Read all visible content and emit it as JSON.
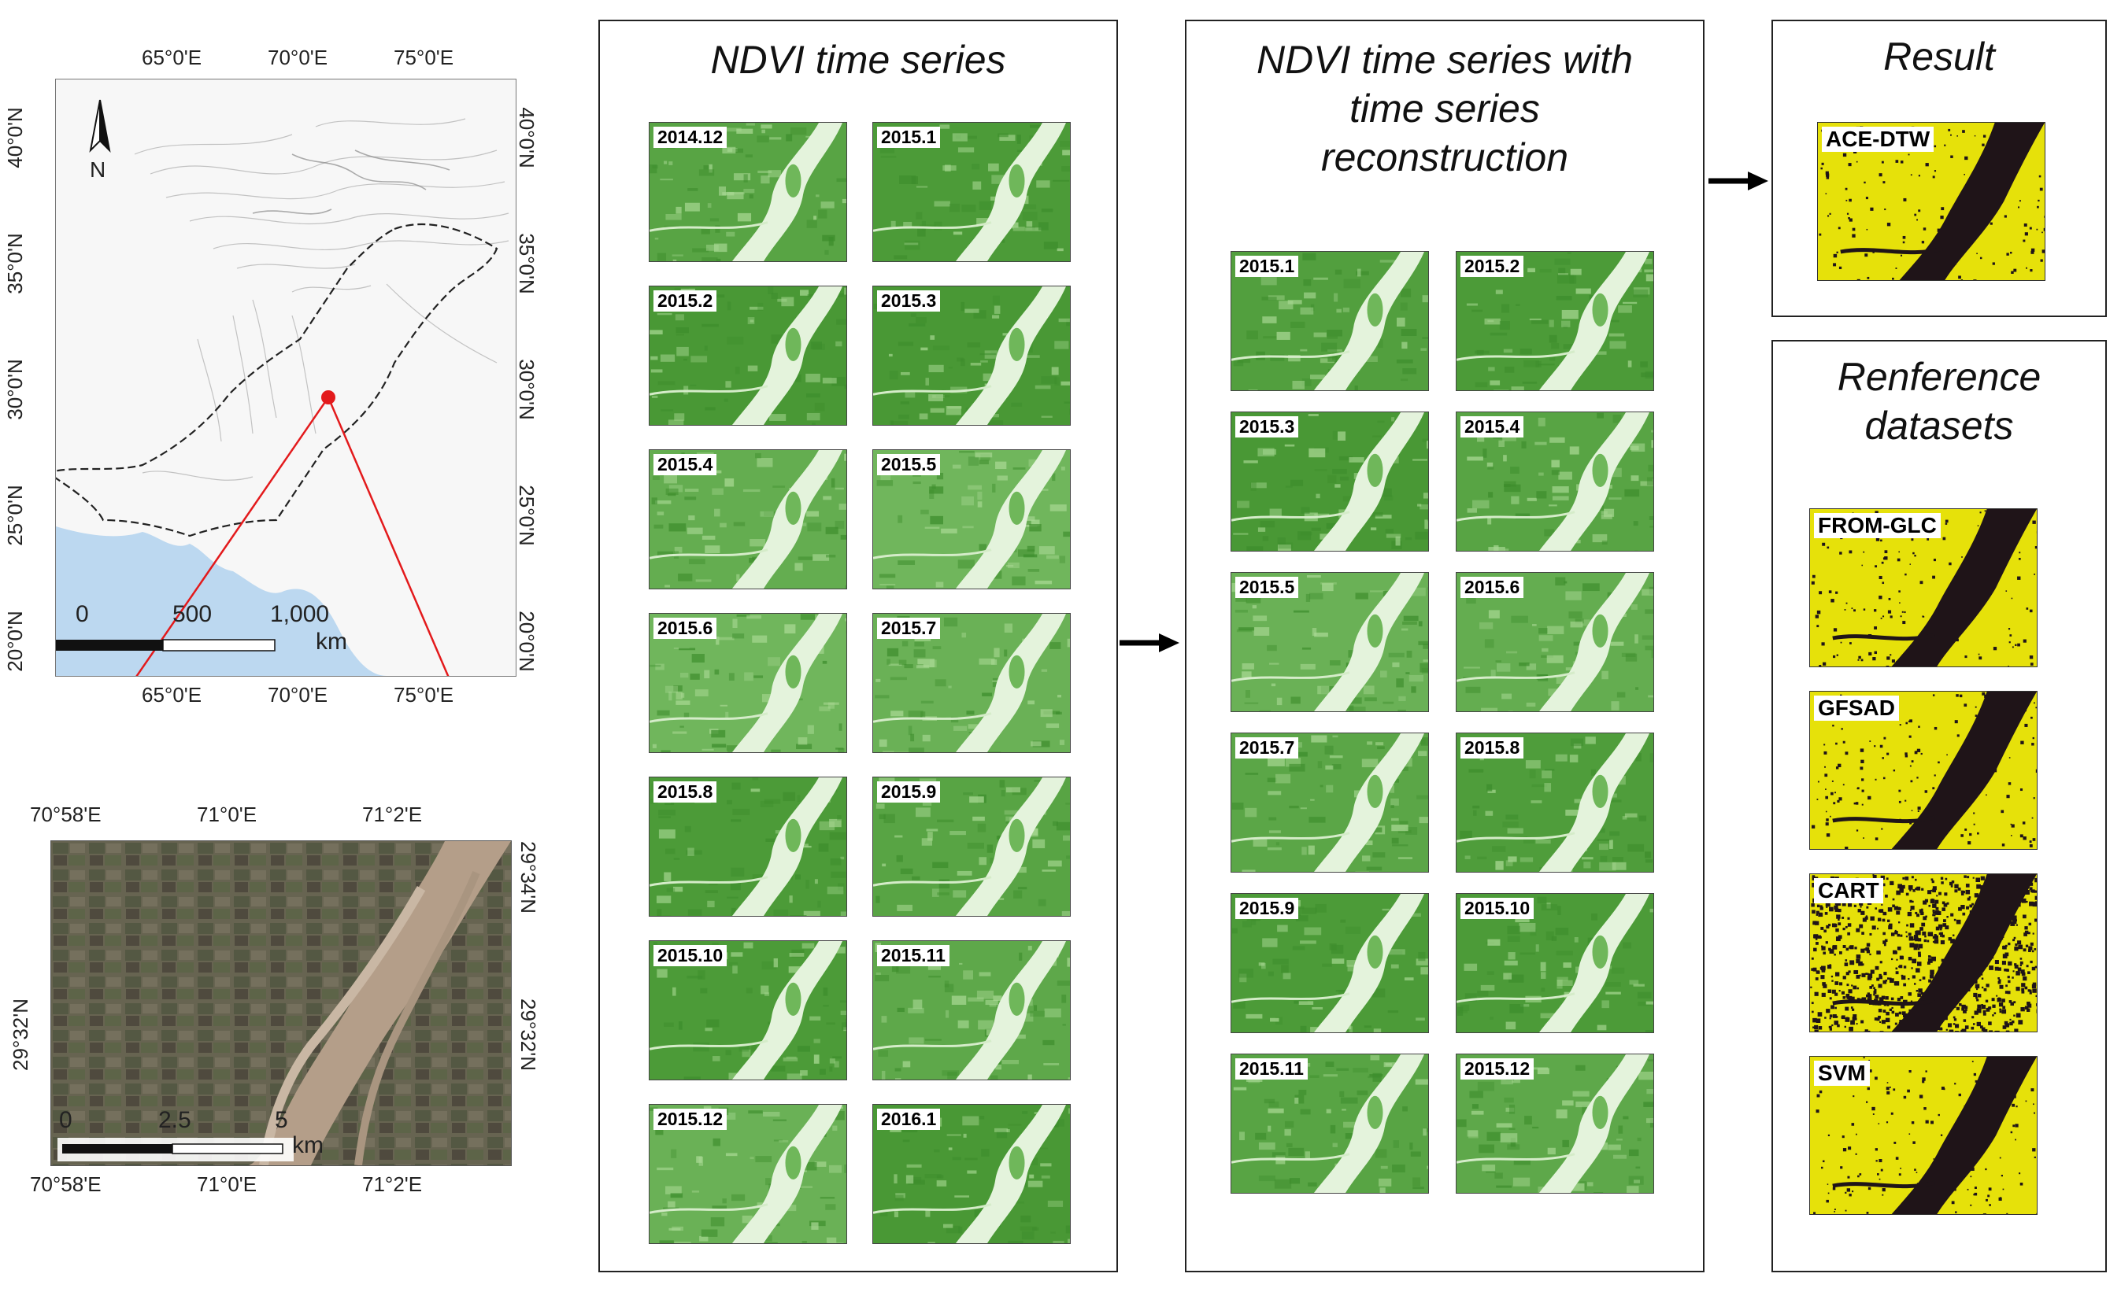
{
  "location_map": {
    "top_ticks": [
      "65°0'E",
      "70°0'E",
      "75°0'E"
    ],
    "bottom_ticks": [
      "65°0'E",
      "70°0'E",
      "75°0'E"
    ],
    "left_ticks": [
      "40°0'N",
      "35°0'N",
      "30°0'N",
      "25°0'N",
      "20°0'N"
    ],
    "right_ticks": [
      "40°0'N",
      "35°0'N",
      "30°0'N",
      "25°0'N",
      "20°0'N"
    ],
    "north_label": "N",
    "scale_labels": [
      "0",
      "500",
      "1,000"
    ],
    "scale_unit": "km",
    "colors": {
      "sea": "#bcd8f0",
      "study_point": "#e31a1c",
      "connector": "#e31a1c"
    }
  },
  "detail_map": {
    "top_ticks": [
      "70°58'E",
      "71°0'E",
      "71°2'E"
    ],
    "bottom_ticks": [
      "70°58'E",
      "71°0'E",
      "71°2'E"
    ],
    "left_ticks": [
      "29°32'N"
    ],
    "right_ticks": [
      "29°34'N",
      "29°32'N"
    ],
    "scale_labels": [
      "0",
      "2.5",
      "5"
    ],
    "scale_unit": "km"
  },
  "panels": {
    "ndvi": {
      "title": "NDVI time series",
      "tiles": [
        "2014.12",
        "2015.1",
        "2015.2",
        "2015.3",
        "2015.4",
        "2015.5",
        "2015.6",
        "2015.7",
        "2015.8",
        "2015.9",
        "2015.10",
        "2015.11",
        "2015.12",
        "2016.1"
      ]
    },
    "reconstructed": {
      "title_lines": [
        "NDVI time series with",
        "time series",
        "reconstruction"
      ],
      "tiles": [
        "2015.1",
        "2015.2",
        "2015.3",
        "2015.4",
        "2015.5",
        "2015.6",
        "2015.7",
        "2015.8",
        "2015.9",
        "2015.10",
        "2015.11",
        "2015.12"
      ]
    },
    "result": {
      "title": "Result",
      "tiles": [
        "ACE-DTW"
      ]
    },
    "reference": {
      "title_lines": [
        "Renference",
        "datasets"
      ],
      "tiles": [
        "FROM-GLC",
        "GFSAD",
        "CART",
        "SVM"
      ]
    }
  },
  "colors": {
    "ndvi_green": "#4fa33a",
    "ndvi_light": "#9fd389",
    "class_yellow": "#e6e10a",
    "class_water": "#1f1418",
    "panel_border": "#222222"
  }
}
